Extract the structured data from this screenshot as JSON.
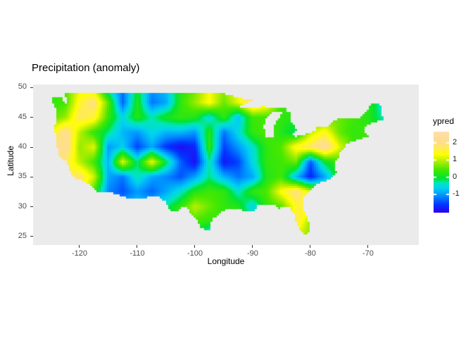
{
  "chart_data": {
    "type": "heatmap",
    "title": "Precipitation (anomaly)",
    "xlabel": "Longitude",
    "ylabel": "Latitude",
    "x_ticks": [
      -120,
      -110,
      -100,
      -90,
      -80,
      -70
    ],
    "y_ticks": [
      50,
      45,
      40,
      35,
      30,
      25
    ],
    "xlim": [
      -128.05,
      -61.21
    ],
    "ylim": [
      23.56,
      50.53
    ],
    "grid_lines": "none",
    "panel_bg": "#EBEBEB",
    "page_bg": "#FFFFFF",
    "tick_label_color": "#4D4D4D",
    "legend": {
      "title": "ypred",
      "ticks": [
        2,
        1,
        0,
        -1
      ],
      "vmin": -2.02,
      "vmax": 2.65,
      "position": "right"
    },
    "colormap_stops": [
      [
        -2.02,
        "#2B00F0"
      ],
      [
        -1.55,
        "#0037FF"
      ],
      [
        -1.0,
        "#0098FF"
      ],
      [
        -0.6,
        "#00D2F0"
      ],
      [
        -0.3,
        "#00E6B9"
      ],
      [
        -0.05,
        "#00E332"
      ],
      [
        0.45,
        "#46E800"
      ],
      [
        0.95,
        "#B4EE00"
      ],
      [
        1.35,
        "#FFFF00"
      ],
      [
        1.9,
        "#FFE27D"
      ],
      [
        2.3,
        "#FFDC96"
      ],
      [
        2.65,
        "#FFDFAD"
      ]
    ],
    "grid": {
      "lon0": -125,
      "dlon": 2.5,
      "lat0": 50,
      "dlat": -2.5,
      "lats": [
        50,
        47.5,
        45,
        42.5,
        40,
        37.5,
        35,
        32.5,
        30,
        27.5,
        25
      ],
      "values": [
        [
          0.3,
          0.5,
          1.2,
          1.0,
          -0.5,
          -1.2,
          0.0,
          -1.0,
          -0.7,
          0.2,
          0.6,
          1.3,
          0.8,
          1.5,
          2.0,
          1.8,
          0.5,
          0.3,
          0.2,
          0.3,
          0.4,
          0.3,
          0.4,
          -0.2
        ],
        [
          0.3,
          0.4,
          1.5,
          2.0,
          0.5,
          -1.3,
          0.2,
          -1.2,
          -0.9,
          0.3,
          0.8,
          1.4,
          0.6,
          1.2,
          2.1,
          1.6,
          0.4,
          0.3,
          0.4,
          0.5,
          0.2,
          0.4,
          0.3,
          -0.5
        ],
        [
          0.5,
          0.8,
          1.8,
          1.6,
          0.3,
          -0.5,
          0.2,
          -0.3,
          0.1,
          0.3,
          0.2,
          -0.5,
          0.3,
          -0.7,
          0.4,
          0.4,
          0.3,
          0.2,
          0.3,
          0.5,
          0.6,
          0.4,
          0.2,
          -0.3
        ],
        [
          1.2,
          2.2,
          1.0,
          0.3,
          -0.2,
          -0.8,
          -1.0,
          -0.5,
          -0.8,
          -0.8,
          -1.0,
          0.2,
          -1.2,
          -0.5,
          0.3,
          0.5,
          0.2,
          -0.2,
          1.0,
          1.5,
          0.6,
          0.3,
          0.4,
          0.2
        ],
        [
          1.8,
          2.3,
          0.8,
          1.2,
          -1.0,
          -0.6,
          -1.5,
          -0.9,
          -1.6,
          -1.9,
          -1.7,
          0.3,
          -1.5,
          -1.0,
          -0.4,
          0.3,
          0.5,
          1.5,
          1.8,
          2.3,
          1.2,
          0.4,
          0.3,
          0.2
        ],
        [
          1.5,
          1.8,
          1.0,
          0.4,
          -0.8,
          1.2,
          -0.2,
          1.3,
          0.0,
          -1.3,
          -1.9,
          -0.3,
          -1.8,
          -1.5,
          -0.5,
          0.3,
          0.4,
          0.6,
          -1.4,
          0.0,
          0.4,
          0.4,
          0.5,
          0.4
        ],
        [
          1.2,
          1.6,
          1.9,
          1.1,
          -0.9,
          -1.2,
          -0.3,
          -0.9,
          -1.1,
          -1.4,
          -0.9,
          -0.2,
          -0.8,
          -1.2,
          -0.9,
          0.2,
          0.4,
          -0.8,
          -1.7,
          -0.9,
          0.3,
          0.5,
          0.4,
          0.3
        ],
        [
          1.0,
          1.4,
          1.6,
          0.4,
          -1.1,
          -1.4,
          -1.0,
          -1.3,
          -0.9,
          -0.4,
          0.2,
          0.4,
          0.3,
          -0.4,
          0.3,
          0.5,
          1.4,
          2.0,
          1.2,
          0.4,
          0.4,
          0.3,
          0.3,
          0.3
        ],
        [
          1.0,
          1.0,
          1.2,
          0.5,
          -0.6,
          -0.8,
          -0.5,
          -0.6,
          -0.2,
          0.3,
          1.0,
          0.6,
          0.3,
          0.2,
          -0.6,
          0.3,
          0.5,
          1.5,
          1.8,
          0.5,
          0.3,
          0.3,
          0.3,
          0.3
        ],
        [
          0.8,
          0.8,
          0.8,
          0.4,
          -0.3,
          -0.4,
          -0.3,
          -0.3,
          0.0,
          0.3,
          0.4,
          0.3,
          0.4,
          0.3,
          0.2,
          0.3,
          0.6,
          1.8,
          0.8,
          0.4,
          0.3,
          0.3,
          0.3,
          0.3
        ],
        [
          0.5,
          0.5,
          0.5,
          0.3,
          0.0,
          0.0,
          0.0,
          0.0,
          0.2,
          0.2,
          0.2,
          -0.9,
          0.3,
          0.2,
          0.2,
          0.3,
          0.5,
          1.0,
          0.8,
          0.4,
          0.3,
          0.3,
          0.3,
          0.3
        ]
      ]
    },
    "us_outline": [
      [
        -124.7,
        48.4
      ],
      [
        -124.1,
        48.3
      ],
      [
        -123.1,
        48.45
      ],
      [
        -122.9,
        47.6
      ],
      [
        -122.3,
        47.3
      ],
      [
        -122.35,
        48.25
      ],
      [
        -122.75,
        49.0
      ],
      [
        -95.15,
        49.0
      ],
      [
        -95.15,
        49.38
      ],
      [
        -94.6,
        48.73
      ],
      [
        -93.4,
        48.6
      ],
      [
        -92.0,
        48.25
      ],
      [
        -89.6,
        48.0
      ],
      [
        -92.1,
        46.8
      ],
      [
        -90.8,
        46.6
      ],
      [
        -88.0,
        46.85
      ],
      [
        -86.5,
        46.6
      ],
      [
        -85.0,
        46.75
      ],
      [
        -84.35,
        46.5
      ],
      [
        -84.1,
        46.15
      ],
      [
        -83.6,
        45.8
      ],
      [
        -83.45,
        45.1
      ],
      [
        -83.3,
        44.3
      ],
      [
        -83.0,
        43.9
      ],
      [
        -82.55,
        43.0
      ],
      [
        -82.42,
        42.95
      ],
      [
        -82.47,
        42.6
      ],
      [
        -83.1,
        42.05
      ],
      [
        -82.6,
        41.75
      ],
      [
        -81.0,
        42.1
      ],
      [
        -80.5,
        42.3
      ],
      [
        -79.05,
        42.85
      ],
      [
        -79.06,
        43.27
      ],
      [
        -77.6,
        43.4
      ],
      [
        -76.8,
        43.55
      ],
      [
        -76.2,
        44.25
      ],
      [
        -74.9,
        44.98
      ],
      [
        -71.5,
        45.0
      ],
      [
        -70.3,
        45.9
      ],
      [
        -69.25,
        47.45
      ],
      [
        -68.3,
        47.35
      ],
      [
        -67.8,
        47.05
      ],
      [
        -67.78,
        45.65
      ],
      [
        -66.95,
        44.8
      ],
      [
        -68.8,
        44.25
      ],
      [
        -70.0,
        43.8
      ],
      [
        -70.7,
        43.0
      ],
      [
        -70.85,
        42.6
      ],
      [
        -70.0,
        41.9
      ],
      [
        -69.95,
        41.65
      ],
      [
        -71.3,
        41.4
      ],
      [
        -72.8,
        40.95
      ],
      [
        -73.95,
        40.55
      ],
      [
        -74.1,
        39.7
      ],
      [
        -75.1,
        39.15
      ],
      [
        -75.05,
        38.3
      ],
      [
        -75.95,
        37.1
      ],
      [
        -75.7,
        36.6
      ],
      [
        -75.5,
        35.6
      ],
      [
        -76.6,
        34.7
      ],
      [
        -77.9,
        34.1
      ],
      [
        -78.85,
        33.8
      ],
      [
        -79.9,
        32.85
      ],
      [
        -80.9,
        32.0
      ],
      [
        -81.4,
        30.7
      ],
      [
        -81.2,
        29.7
      ],
      [
        -80.5,
        28.2
      ],
      [
        -80.05,
        26.9
      ],
      [
        -80.1,
        25.8
      ],
      [
        -80.55,
        25.2
      ],
      [
        -81.2,
        25.3
      ],
      [
        -81.9,
        26.4
      ],
      [
        -82.7,
        27.9
      ],
      [
        -82.85,
        29.0
      ],
      [
        -83.7,
        29.9
      ],
      [
        -84.4,
        29.95
      ],
      [
        -85.35,
        29.7
      ],
      [
        -86.5,
        30.4
      ],
      [
        -87.8,
        30.25
      ],
      [
        -89.1,
        30.15
      ],
      [
        -89.6,
        29.2
      ],
      [
        -91.0,
        29.2
      ],
      [
        -92.3,
        29.55
      ],
      [
        -93.8,
        29.7
      ],
      [
        -94.9,
        29.35
      ],
      [
        -96.0,
        28.6
      ],
      [
        -97.05,
        27.9
      ],
      [
        -97.35,
        26.9
      ],
      [
        -97.15,
        25.95
      ],
      [
        -99.1,
        26.4
      ],
      [
        -99.5,
        27.55
      ],
      [
        -100.0,
        28.2
      ],
      [
        -101.45,
        29.77
      ],
      [
        -102.3,
        29.9
      ],
      [
        -103.1,
        29.0
      ],
      [
        -104.0,
        29.3
      ],
      [
        -104.7,
        30.0
      ],
      [
        -105.0,
        30.7
      ],
      [
        -106.4,
        31.75
      ],
      [
        -108.2,
        31.78
      ],
      [
        -108.2,
        31.33
      ],
      [
        -111.1,
        31.33
      ],
      [
        -114.8,
        32.5
      ],
      [
        -117.13,
        32.53
      ],
      [
        -117.3,
        33.05
      ],
      [
        -118.3,
        33.75
      ],
      [
        -119.7,
        34.4
      ],
      [
        -120.65,
        34.57
      ],
      [
        -121.9,
        36.3
      ],
      [
        -122.0,
        36.95
      ],
      [
        -122.5,
        37.8
      ],
      [
        -123.0,
        38.0
      ],
      [
        -123.75,
        38.95
      ],
      [
        -123.85,
        39.8
      ],
      [
        -124.15,
        40.3
      ],
      [
        -124.1,
        41.9
      ],
      [
        -124.35,
        43.35
      ],
      [
        -124.05,
        44.6
      ],
      [
        -123.95,
        45.5
      ],
      [
        -124.05,
        46.3
      ],
      [
        -124.65,
        47.4
      ]
    ],
    "lake_michigan": [
      [
        -87.7,
        41.65
      ],
      [
        -86.6,
        41.6
      ],
      [
        -86.2,
        42.4
      ],
      [
        -86.3,
        43.3
      ],
      [
        -86.0,
        44.1
      ],
      [
        -85.5,
        44.9
      ],
      [
        -84.9,
        45.65
      ],
      [
        -84.75,
        45.95
      ],
      [
        -85.6,
        46.05
      ],
      [
        -86.7,
        45.8
      ],
      [
        -87.3,
        45.2
      ],
      [
        -87.85,
        44.3
      ],
      [
        -88.05,
        43.3
      ],
      [
        -87.85,
        42.3
      ]
    ]
  }
}
